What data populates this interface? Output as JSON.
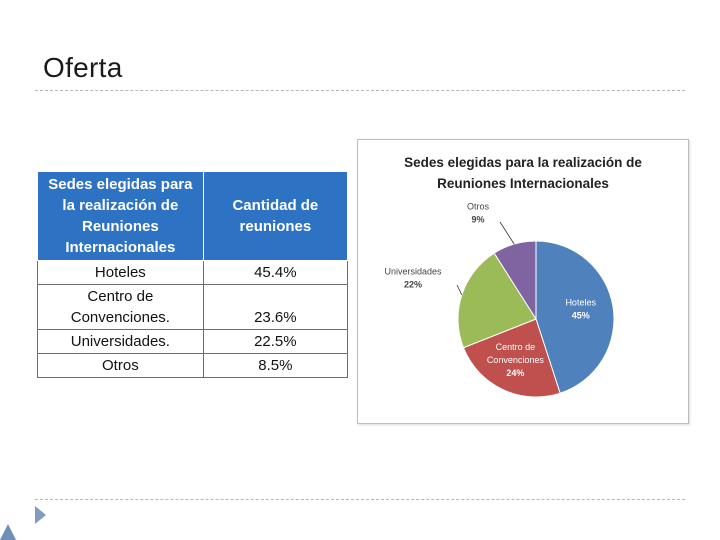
{
  "slide": {
    "title": "Oferta"
  },
  "table": {
    "headers": [
      "Sedes elegidas para la realización de Reuniones Internacionales",
      "Cantidad de reuniones"
    ],
    "rows": [
      {
        "name": "Hoteles",
        "value": "45.4%"
      },
      {
        "name": "Centro de Convenciones.",
        "value": "23.6%"
      },
      {
        "name": "Universidades.",
        "value": "22.5%"
      },
      {
        "name": "Otros",
        "value": "8.5%"
      }
    ]
  },
  "chart_data": {
    "type": "pie",
    "title": "Sedes elegidas para la realización de Reuniones Internacionales",
    "title_lines": [
      "Sedes elegidas para la realización de",
      "Reuniones Internacionales"
    ],
    "slices": [
      {
        "name": "Hoteles",
        "value": 45,
        "label": "45%",
        "color": "#4f81bd"
      },
      {
        "name": "Centro de Convenciones",
        "value": 24,
        "label": "24%",
        "color": "#c0504d"
      },
      {
        "name": "Universidades",
        "value": 22,
        "label": "22%",
        "color": "#9bbb59"
      },
      {
        "name": "Otros",
        "value": 9,
        "label": "9%",
        "color": "#8064a2"
      }
    ],
    "legend": "none"
  }
}
